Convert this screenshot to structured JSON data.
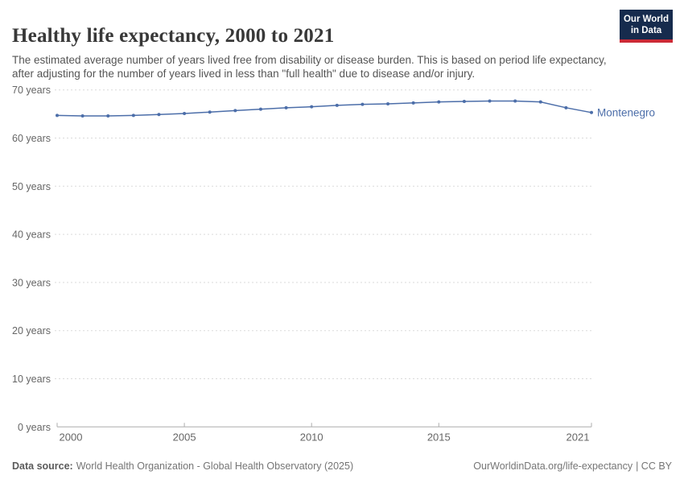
{
  "header": {
    "title": "Healthy life expectancy, 2000 to 2021",
    "subtitle": "The estimated average number of years lived free from disability or disease burden. This is based on period life expectancy, after adjusting for the number of years lived in less than \"full health\" due to disease and/or injury."
  },
  "logo": {
    "line1": "Our World",
    "line2": "in Data",
    "bg_color": "#162b4d",
    "bar_color": "#cc2a36"
  },
  "chart_data": {
    "type": "line",
    "title": "Healthy life expectancy, 2000 to 2021",
    "x": [
      2000,
      2001,
      2002,
      2003,
      2004,
      2005,
      2006,
      2007,
      2008,
      2009,
      2010,
      2011,
      2012,
      2013,
      2014,
      2015,
      2016,
      2017,
      2018,
      2019,
      2020,
      2021
    ],
    "series": [
      {
        "name": "Montenegro",
        "color": "#4c6ea9",
        "values": [
          64.7,
          64.6,
          64.6,
          64.7,
          64.9,
          65.1,
          65.4,
          65.7,
          66.0,
          66.3,
          66.5,
          66.8,
          67.0,
          67.1,
          67.3,
          67.5,
          67.6,
          67.7,
          67.7,
          67.5,
          66.3,
          65.3
        ]
      }
    ],
    "ylim": [
      0,
      70
    ],
    "yticks": [
      0,
      10,
      20,
      30,
      40,
      50,
      60,
      70
    ],
    "ytick_suffix": " years",
    "xticks": [
      2000,
      2005,
      2010,
      2015,
      2021
    ],
    "grid": true,
    "legend": "end-of-line-label",
    "colors": {
      "grid": "#dadada",
      "axis": "#adadad",
      "tick_text": "#666666"
    }
  },
  "footer": {
    "source_label": "Data source:",
    "source_text": "World Health Organization - Global Health Observatory (2025)",
    "link_text": "OurWorldinData.org/life-expectancy",
    "license_text": "| CC BY"
  }
}
